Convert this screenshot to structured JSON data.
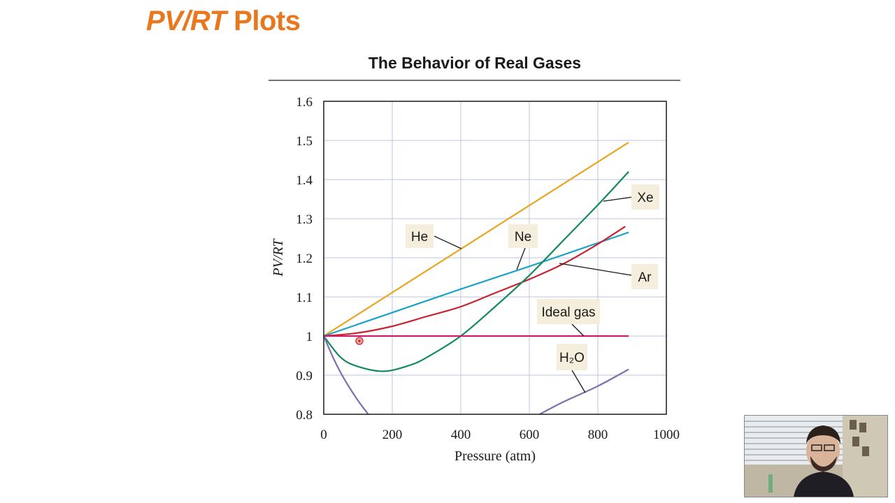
{
  "slide": {
    "title_italic": "PV/RT",
    "title_rest": " Plots"
  },
  "chart_data": {
    "type": "line",
    "title": "The Behavior of Real Gases",
    "xlabel": "Pressure (atm)",
    "ylabel": "PV/RT",
    "xlim": [
      0,
      1000
    ],
    "ylim": [
      0.8,
      1.6
    ],
    "xticks": [
      0,
      200,
      400,
      600,
      800,
      1000
    ],
    "yticks": [
      0.8,
      0.9,
      1,
      1.1,
      1.2,
      1.3,
      1.4,
      1.5,
      1.6
    ],
    "grid": true,
    "series": [
      {
        "name": "He",
        "color": "#e8a61f",
        "x": [
          0,
          890
        ],
        "y": [
          1.0,
          1.495
        ]
      },
      {
        "name": "Ne",
        "color": "#1aa3c7",
        "x": [
          0,
          200,
          400,
          600,
          890
        ],
        "y": [
          1.0,
          1.06,
          1.12,
          1.178,
          1.265
        ]
      },
      {
        "name": "Ar",
        "color": "#c8232e",
        "x": [
          0,
          100,
          200,
          300,
          400,
          500,
          600,
          700,
          800,
          880
        ],
        "y": [
          1.0,
          1.008,
          1.025,
          1.05,
          1.075,
          1.11,
          1.145,
          1.185,
          1.235,
          1.28
        ]
      },
      {
        "name": "Xe",
        "color": "#138a5d",
        "x": [
          0,
          50,
          100,
          175,
          250,
          300,
          400,
          500,
          600,
          700,
          800,
          890
        ],
        "y": [
          1.0,
          0.945,
          0.922,
          0.91,
          0.925,
          0.945,
          1.0,
          1.075,
          1.155,
          1.245,
          1.335,
          1.42
        ]
      },
      {
        "name": "Ideal gas",
        "color": "#d01c6a",
        "x": [
          0,
          890
        ],
        "y": [
          1.0,
          1.0
        ]
      },
      {
        "name": "H₂O",
        "color": "#7b6fb0",
        "segments": [
          {
            "x": [
              0,
              30,
              60,
              100,
              130
            ],
            "y": [
              1.0,
              0.94,
              0.89,
              0.835,
              0.8
            ]
          },
          {
            "x": [
              630,
              700,
              800,
              890
            ],
            "y": [
              0.8,
              0.832,
              0.872,
              0.915
            ]
          }
        ]
      }
    ],
    "labels": [
      {
        "text": "He",
        "series": "He"
      },
      {
        "text": "Ne",
        "series": "Ne"
      },
      {
        "text": "Xe",
        "series": "Xe"
      },
      {
        "text": "Ar",
        "series": "Ar"
      },
      {
        "text": "Ideal gas",
        "series": "Ideal gas"
      },
      {
        "text": "H₂O",
        "series": "H₂O"
      }
    ]
  }
}
